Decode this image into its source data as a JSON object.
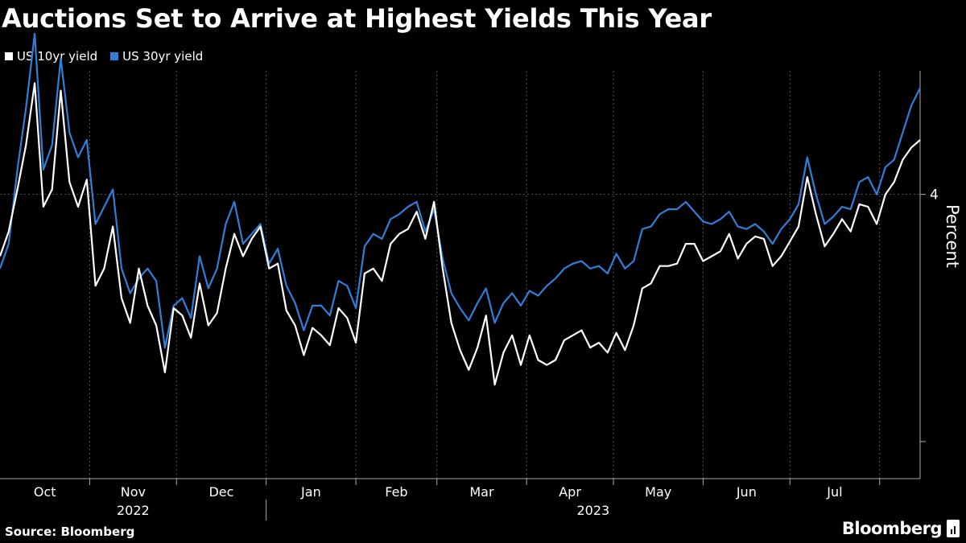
{
  "title": "Auctions Set to Arrive at Highest Yields This Year",
  "footer": {
    "source": "Source: Bloomberg",
    "brand": "Bloomberg",
    "brand_icon": "bloomberg-terminal-icon"
  },
  "colors": {
    "background": "#000000",
    "series_10yr": "#ffffff",
    "series_30yr": "#2f7fd9",
    "grid": "#555555",
    "axis": "#aaaaaa"
  },
  "chart_data": {
    "type": "line",
    "title": "Auctions Set to Arrive at Highest Yields This Year",
    "ylabel": "Percent",
    "ylim": [
      2.85,
      4.5
    ],
    "yticks": [
      3,
      4
    ],
    "ytick_labels": [
      "",
      "4"
    ],
    "grid": "dashed vertical month lines, dashed horizontal at 4",
    "legend_position": "top-left",
    "x_month_labels": [
      "Oct",
      "Nov",
      "Dec",
      "Jan",
      "Feb",
      "Mar",
      "Apr",
      "May",
      "Jun",
      "Jul"
    ],
    "x_year_labels": [
      "2022",
      "2023"
    ],
    "x_start": "2022-10-01",
    "x_end": "2023-08-15",
    "x": [
      "2022-10-01",
      "2022-10-04",
      "2022-10-07",
      "2022-10-10",
      "2022-10-13",
      "2022-10-16",
      "2022-10-19",
      "2022-10-22",
      "2022-10-25",
      "2022-10-28",
      "2022-10-31",
      "2022-11-03",
      "2022-11-06",
      "2022-11-09",
      "2022-11-12",
      "2022-11-15",
      "2022-11-18",
      "2022-11-21",
      "2022-11-24",
      "2022-11-27",
      "2022-11-30",
      "2022-12-03",
      "2022-12-06",
      "2022-12-09",
      "2022-12-12",
      "2022-12-15",
      "2022-12-18",
      "2022-12-21",
      "2022-12-24",
      "2022-12-27",
      "2022-12-30",
      "2023-01-02",
      "2023-01-05",
      "2023-01-08",
      "2023-01-11",
      "2023-01-14",
      "2023-01-17",
      "2023-01-20",
      "2023-01-23",
      "2023-01-26",
      "2023-01-29",
      "2023-02-01",
      "2023-02-04",
      "2023-02-07",
      "2023-02-10",
      "2023-02-13",
      "2023-02-16",
      "2023-02-19",
      "2023-02-22",
      "2023-02-25",
      "2023-02-28",
      "2023-03-03",
      "2023-03-06",
      "2023-03-09",
      "2023-03-12",
      "2023-03-15",
      "2023-03-18",
      "2023-03-21",
      "2023-03-24",
      "2023-03-27",
      "2023-03-30",
      "2023-04-02",
      "2023-04-05",
      "2023-04-08",
      "2023-04-11",
      "2023-04-14",
      "2023-04-17",
      "2023-04-20",
      "2023-04-23",
      "2023-04-26",
      "2023-04-29",
      "2023-05-02",
      "2023-05-05",
      "2023-05-08",
      "2023-05-11",
      "2023-05-14",
      "2023-05-17",
      "2023-05-20",
      "2023-05-23",
      "2023-05-26",
      "2023-05-29",
      "2023-06-01",
      "2023-06-04",
      "2023-06-07",
      "2023-06-10",
      "2023-06-13",
      "2023-06-16",
      "2023-06-19",
      "2023-06-22",
      "2023-06-25",
      "2023-06-28",
      "2023-07-01",
      "2023-07-04",
      "2023-07-07",
      "2023-07-10",
      "2023-07-13",
      "2023-07-16",
      "2023-07-19",
      "2023-07-22",
      "2023-07-25",
      "2023-07-28",
      "2023-07-31",
      "2023-08-03",
      "2023-08-06",
      "2023-08-09",
      "2023-08-12",
      "2023-08-15"
    ],
    "series": [
      {
        "name": "US 10yr yield",
        "color": "#ffffff",
        "values": [
          3.75,
          3.85,
          4.02,
          4.2,
          4.45,
          3.95,
          4.02,
          4.42,
          4.05,
          3.95,
          4.06,
          3.63,
          3.7,
          3.87,
          3.58,
          3.48,
          3.7,
          3.55,
          3.47,
          3.28,
          3.54,
          3.51,
          3.42,
          3.64,
          3.47,
          3.52,
          3.7,
          3.84,
          3.75,
          3.82,
          3.87,
          3.7,
          3.72,
          3.53,
          3.47,
          3.35,
          3.46,
          3.43,
          3.39,
          3.54,
          3.5,
          3.4,
          3.68,
          3.7,
          3.65,
          3.8,
          3.84,
          3.86,
          3.93,
          3.82,
          3.97,
          3.7,
          3.48,
          3.37,
          3.29,
          3.38,
          3.51,
          3.23,
          3.36,
          3.43,
          3.31,
          3.43,
          3.33,
          3.31,
          3.33,
          3.41,
          3.43,
          3.45,
          3.38,
          3.4,
          3.36,
          3.44,
          3.37,
          3.47,
          3.62,
          3.64,
          3.71,
          3.71,
          3.72,
          3.8,
          3.8,
          3.73,
          3.75,
          3.77,
          3.84,
          3.74,
          3.8,
          3.83,
          3.82,
          3.71,
          3.75,
          3.81,
          3.87,
          4.07,
          3.92,
          3.79,
          3.84,
          3.9,
          3.85,
          3.96,
          3.95,
          3.88,
          4.0,
          4.05,
          4.14,
          4.19,
          4.22
        ]
      },
      {
        "name": "US 30yr yield",
        "color": "#2f7fd9",
        "values": [
          3.7,
          3.8,
          4.1,
          4.35,
          4.65,
          4.1,
          4.2,
          4.55,
          4.25,
          4.15,
          4.22,
          3.88,
          3.95,
          4.02,
          3.7,
          3.6,
          3.66,
          3.7,
          3.65,
          3.38,
          3.55,
          3.58,
          3.5,
          3.75,
          3.62,
          3.7,
          3.88,
          3.97,
          3.8,
          3.84,
          3.88,
          3.72,
          3.78,
          3.63,
          3.56,
          3.45,
          3.55,
          3.55,
          3.51,
          3.65,
          3.63,
          3.54,
          3.79,
          3.84,
          3.82,
          3.9,
          3.92,
          3.95,
          3.97,
          3.85,
          3.94,
          3.74,
          3.6,
          3.54,
          3.49,
          3.56,
          3.62,
          3.48,
          3.56,
          3.6,
          3.55,
          3.61,
          3.59,
          3.63,
          3.66,
          3.7,
          3.72,
          3.73,
          3.7,
          3.71,
          3.68,
          3.76,
          3.7,
          3.73,
          3.86,
          3.87,
          3.92,
          3.94,
          3.94,
          3.97,
          3.93,
          3.89,
          3.88,
          3.9,
          3.93,
          3.87,
          3.86,
          3.88,
          3.85,
          3.8,
          3.86,
          3.9,
          3.96,
          4.15,
          4.0,
          3.88,
          3.91,
          3.95,
          3.94,
          4.05,
          4.07,
          4.0,
          4.11,
          4.14,
          4.25,
          4.36,
          4.43
        ]
      }
    ]
  }
}
